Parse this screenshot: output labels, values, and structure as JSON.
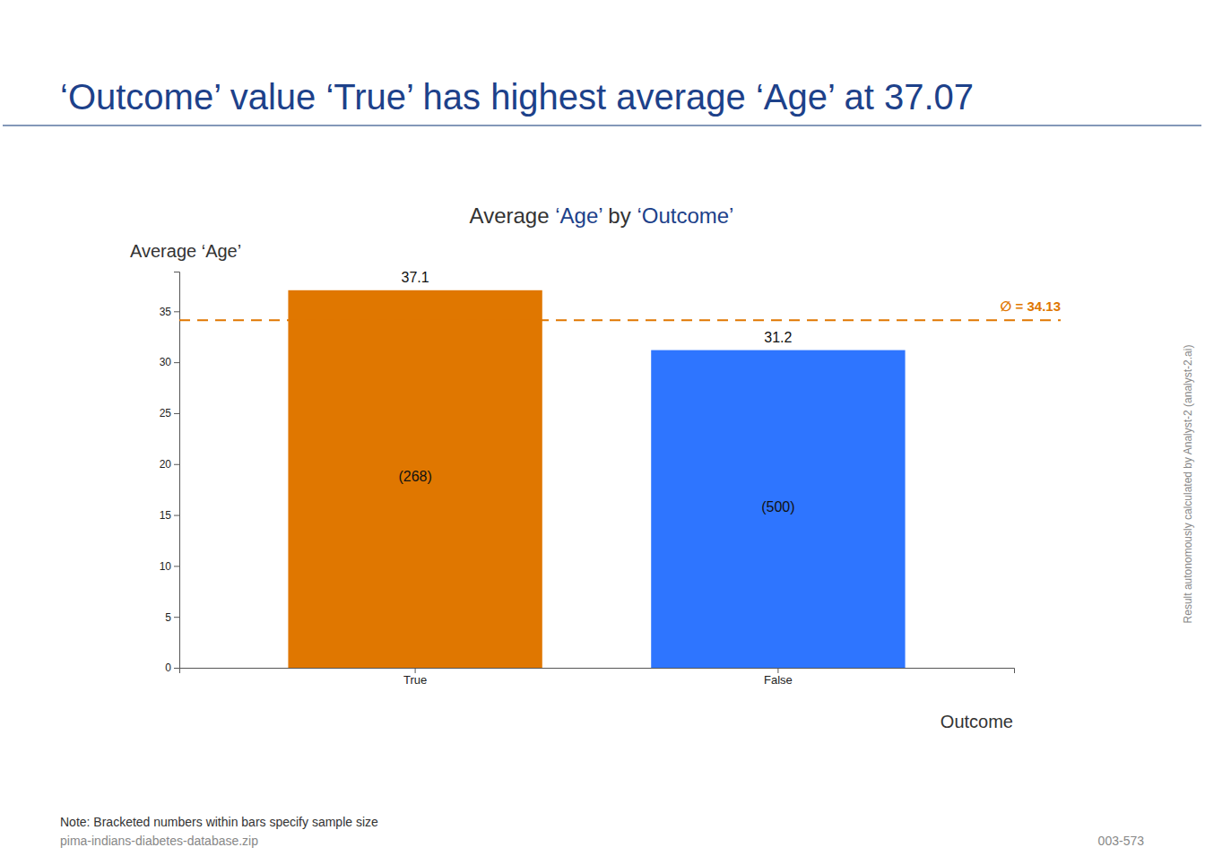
{
  "chart_data": {
    "type": "bar",
    "title": "Average ‘Age’ by ‘Outcome’",
    "y_label": "Average ‘Age’",
    "x_label": "Outcome",
    "categories": [
      "True",
      "False"
    ],
    "values": [
      37.07,
      31.19
    ],
    "value_labels": [
      "37.1",
      "31.2"
    ],
    "colors": [
      "#e07700",
      "#2e75ff"
    ],
    "sample_sizes": [
      268,
      500
    ],
    "sample_size_labels": [
      "(268)",
      "(500)"
    ],
    "reference_line": {
      "value": 34.13,
      "label": "∅ = 34.13"
    },
    "ylim": [
      0,
      38.9
    ],
    "yticks": [
      0,
      5,
      10,
      15,
      20,
      25,
      30,
      35
    ],
    "grid": false,
    "data_labels": true
  },
  "page": {
    "headline": "‘Outcome’ value ‘True’ has highest average ‘Age’ at 37.07",
    "note": "Note: Bracketed numbers within bars specify sample size",
    "source": "pima-indians-diabetes-database.zip",
    "id": "003-573",
    "credit": "Result autonomously calculated by Analyst-2 (analyst-2.ai)"
  }
}
